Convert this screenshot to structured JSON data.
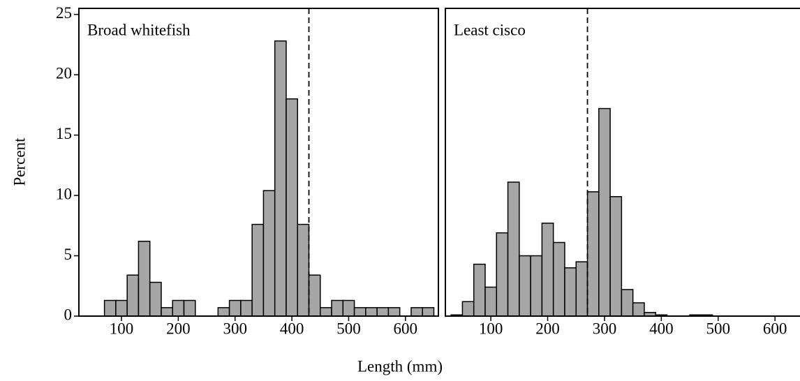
{
  "chart_data": [
    {
      "type": "histogram",
      "annotation": "Broad whitefish",
      "ylabel": "Percent",
      "xlabel": "Length (mm)",
      "bins": [
        30,
        50,
        70,
        90,
        110,
        130,
        150,
        170,
        190,
        210,
        230,
        250,
        270,
        290,
        310,
        330,
        350,
        370,
        390,
        410,
        430,
        450,
        470,
        490,
        510,
        530,
        550,
        570,
        590,
        610,
        630,
        650
      ],
      "values": [
        0,
        0,
        1.3,
        1.3,
        3.4,
        6.2,
        2.8,
        0.7,
        1.3,
        1.3,
        0,
        0,
        0.7,
        1.3,
        1.3,
        7.6,
        10.4,
        22.8,
        18,
        7.6,
        3.4,
        0.7,
        1.3,
        1.3,
        0.7,
        0.7,
        0.7,
        0.7,
        0,
        0.7,
        0.7
      ],
      "color": "#a6a6a6",
      "reference_line": 430,
      "xlim": [
        25,
        658
      ],
      "xticks": [
        100,
        200,
        300,
        400,
        500,
        600
      ],
      "ylim": [
        0,
        25.5
      ],
      "yticks": [
        0,
        5,
        10,
        15,
        20,
        25
      ]
    },
    {
      "type": "histogram",
      "annotation": "Least cisco",
      "bins": [
        30,
        50,
        70,
        90,
        110,
        130,
        150,
        170,
        190,
        210,
        230,
        250,
        270,
        290,
        310,
        330,
        350,
        370,
        390,
        410,
        430,
        450,
        470,
        490,
        510,
        530,
        550,
        570,
        590,
        610,
        630
      ],
      "values": [
        0.1,
        1.2,
        4.3,
        2.4,
        6.9,
        11.1,
        5.0,
        5.0,
        7.7,
        6.1,
        4.0,
        4.5,
        10.3,
        17.2,
        9.9,
        2.2,
        1.1,
        0.3,
        0.1,
        0,
        0,
        0.1,
        0.1,
        0,
        0,
        0,
        0,
        0,
        0,
        0
      ],
      "color": "#a6a6a6",
      "reference_line": 270,
      "xlim": [
        20,
        644
      ],
      "xticks": [
        100,
        200,
        300,
        400,
        500,
        600
      ],
      "ylim": [
        0,
        25.5
      ]
    }
  ]
}
